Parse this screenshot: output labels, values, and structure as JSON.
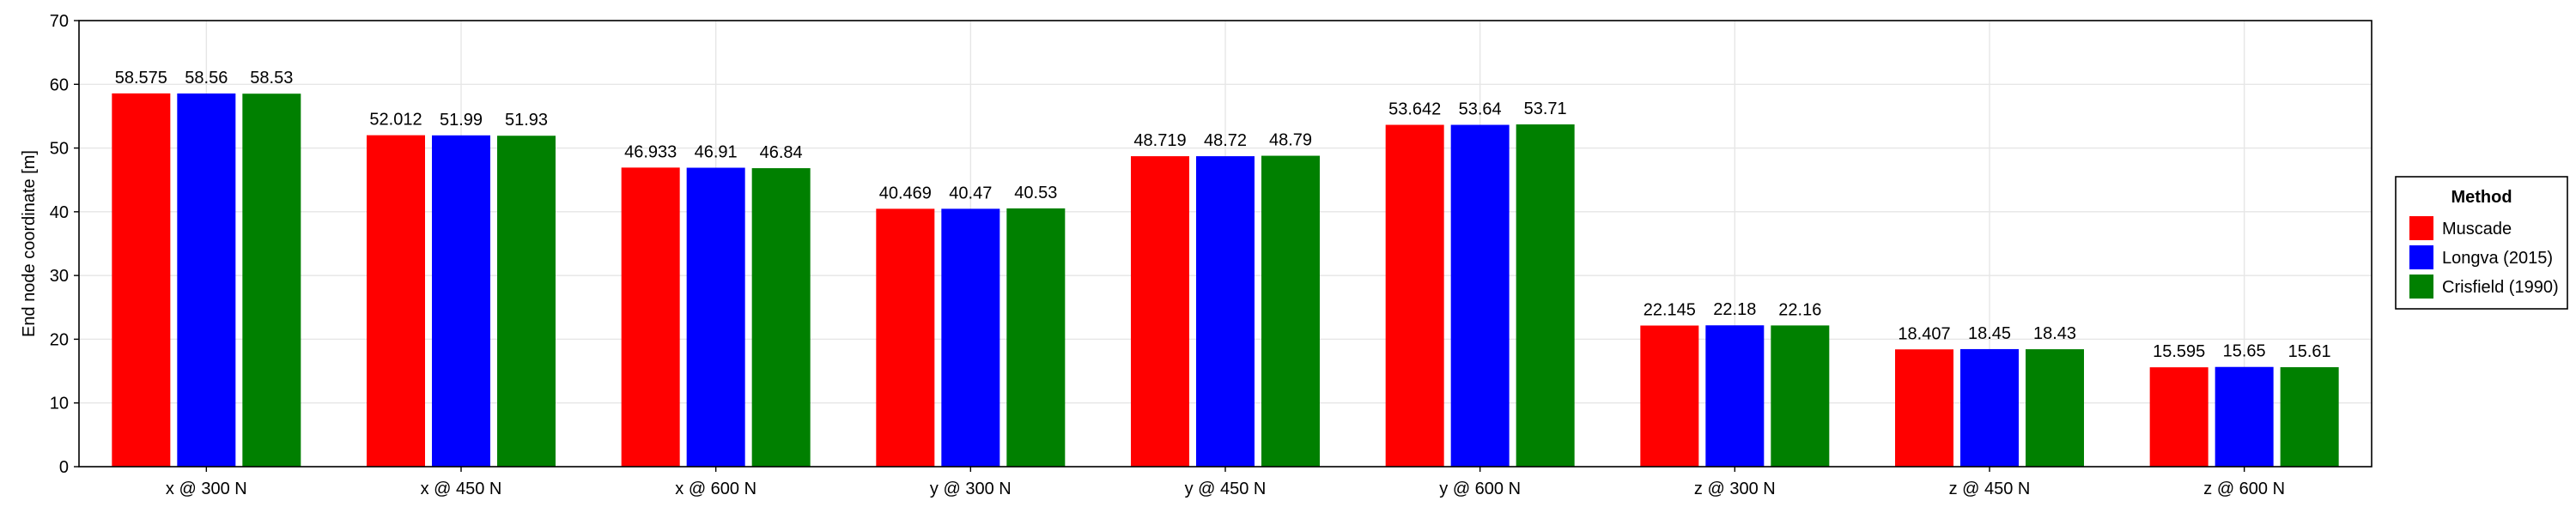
{
  "chart_data": {
    "type": "bar",
    "categories": [
      "x @ 300 N",
      "x @ 450 N",
      "x @ 600 N",
      "y @ 300 N",
      "y @ 450 N",
      "y @ 600 N",
      "z @ 300 N",
      "z @ 450 N",
      "z @ 600 N"
    ],
    "series": [
      {
        "name": "Muscade",
        "color": "#ff0000",
        "values": [
          58.575,
          52.012,
          46.933,
          40.469,
          48.719,
          53.642,
          22.145,
          18.407,
          15.595
        ]
      },
      {
        "name": "Longva (2015)",
        "color": "#0000ff",
        "values": [
          58.56,
          51.99,
          46.91,
          40.47,
          48.72,
          53.64,
          22.18,
          18.45,
          15.65
        ]
      },
      {
        "name": "Crisfield (1990)",
        "color": "#008000",
        "values": [
          58.53,
          51.93,
          46.84,
          40.53,
          48.79,
          53.71,
          22.16,
          18.43,
          15.61
        ]
      }
    ],
    "data_labels": [
      [
        "58.575",
        "52.012",
        "46.933",
        "40.469",
        "48.719",
        "53.642",
        "22.145",
        "18.407",
        "15.595"
      ],
      [
        "58.56",
        "51.99",
        "46.91",
        "40.47",
        "48.72",
        "53.64",
        "22.18",
        "18.45",
        "15.65"
      ],
      [
        "58.53",
        "51.93",
        "46.84",
        "40.53",
        "48.79",
        "53.71",
        "22.16",
        "18.43",
        "15.61"
      ]
    ],
    "title": "",
    "xlabel": "",
    "ylabel": "End node coordinate [m]",
    "ylim": [
      0,
      70
    ],
    "yticks": [
      0,
      10,
      20,
      30,
      40,
      50,
      60,
      70
    ],
    "ytick_labels": [
      "0",
      "10",
      "20",
      "30",
      "40",
      "50",
      "60",
      "70"
    ],
    "grid": true,
    "legend": {
      "title": "Method",
      "placement": "right"
    }
  }
}
